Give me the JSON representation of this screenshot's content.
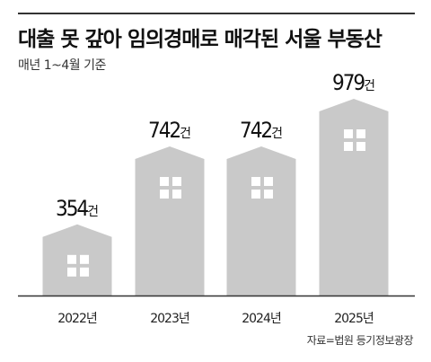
{
  "header": {
    "title": "대출 못 갚아 임의경매로 매각된 서울 부동산",
    "subtitle": "매년 1~4월 기준"
  },
  "footer": {
    "source": "자료=법원 등기정보광장"
  },
  "chart_data": {
    "type": "bar",
    "style": "building-shaped bars with gable roofs and window icons",
    "categories": [
      "2022년",
      "2023년",
      "2024년",
      "2025년"
    ],
    "values": [
      354,
      742,
      742,
      979
    ],
    "value_suffix": "건",
    "title": "대출 못 갚아 임의경매로 매각된 서울 부동산",
    "subtitle": "매년 1~4월 기준",
    "xlabel": "",
    "ylabel": "",
    "ylim": [
      0,
      1000
    ],
    "grid": false,
    "legend": "none",
    "colors": {
      "bar": "#c9c9c9",
      "window": "#ffffff",
      "axis": "#333333"
    }
  }
}
